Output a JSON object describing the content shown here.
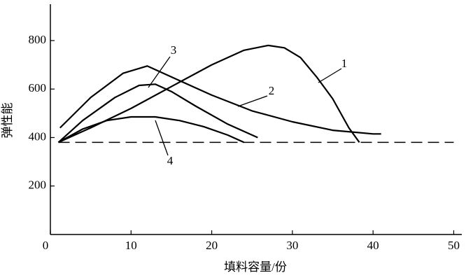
{
  "chart_data": {
    "type": "line",
    "x_label": "填料容量/份",
    "y_label": "弹性能",
    "xlim": [
      0,
      51
    ],
    "xticks": [
      0,
      10,
      20,
      30,
      40,
      50
    ],
    "ylim": [
      0,
      950
    ],
    "yticks": [
      200,
      400,
      600,
      800
    ],
    "reference_line": {
      "value": 380,
      "style": "dashed",
      "color": "#000000"
    },
    "series": [
      {
        "name": "1",
        "color": "#000000",
        "x": [
          1,
          5,
          10,
          15,
          20,
          24,
          27,
          29,
          31,
          33,
          35,
          37,
          38.3
        ],
        "values": [
          380,
          440,
          520,
          610,
          700,
          760,
          780,
          770,
          730,
          650,
          560,
          440,
          380
        ]
      },
      {
        "name": "2",
        "color": "#000000",
        "x": [
          1.2,
          5,
          9,
          12,
          15,
          20,
          25,
          30,
          35,
          40,
          41
        ],
        "values": [
          440,
          565,
          665,
          695,
          650,
          575,
          510,
          465,
          430,
          415,
          415
        ]
      },
      {
        "name": "3",
        "color": "#000000",
        "x": [
          1,
          4,
          8,
          11,
          13,
          15,
          18,
          22,
          25.7
        ],
        "values": [
          380,
          470,
          565,
          615,
          620,
          590,
          530,
          455,
          400
        ]
      },
      {
        "name": "4",
        "color": "#000000",
        "x": [
          1,
          4,
          7,
          10,
          13,
          16,
          19,
          22,
          24
        ],
        "values": [
          380,
          435,
          470,
          485,
          485,
          470,
          445,
          410,
          380
        ]
      }
    ]
  }
}
